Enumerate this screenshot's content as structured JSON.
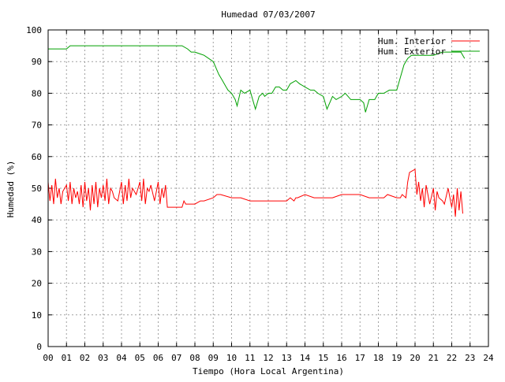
{
  "chart_data": {
    "type": "line",
    "title": "Humedad 07/03/2007",
    "xlabel": "Tiempo (Hora Local Argentina)",
    "ylabel": "Humedad (%)",
    "xlim": [
      0,
      24
    ],
    "ylim": [
      0,
      100
    ],
    "x_ticks": [
      "00",
      "01",
      "02",
      "03",
      "04",
      "05",
      "06",
      "07",
      "08",
      "09",
      "10",
      "11",
      "12",
      "13",
      "14",
      "15",
      "16",
      "17",
      "18",
      "19",
      "20",
      "21",
      "22",
      "23",
      "24"
    ],
    "y_ticks": [
      "0",
      "10",
      "20",
      "30",
      "40",
      "50",
      "60",
      "70",
      "80",
      "90",
      "100"
    ],
    "grid": true,
    "legend_position": "top-right",
    "series": [
      {
        "name": "Hum. Interior",
        "color": "#ff0000",
        "x": [
          0.0,
          0.1,
          0.2,
          0.3,
          0.4,
          0.5,
          0.6,
          0.7,
          0.8,
          0.9,
          1.0,
          1.1,
          1.2,
          1.3,
          1.4,
          1.5,
          1.6,
          1.7,
          1.8,
          1.9,
          2.0,
          2.1,
          2.2,
          2.3,
          2.4,
          2.5,
          2.6,
          2.7,
          2.8,
          2.9,
          3.0,
          3.1,
          3.2,
          3.3,
          3.4,
          3.5,
          3.6,
          3.8,
          4.0,
          4.1,
          4.2,
          4.3,
          4.4,
          4.5,
          4.6,
          4.8,
          5.0,
          5.1,
          5.2,
          5.3,
          5.4,
          5.5,
          5.6,
          5.8,
          6.0,
          6.1,
          6.2,
          6.3,
          6.4,
          6.5,
          6.6,
          7.0,
          7.3,
          7.4,
          7.5,
          7.6,
          8.0,
          8.3,
          8.5,
          9.0,
          9.2,
          9.4,
          10.0,
          10.5,
          11.0,
          11.5,
          12.0,
          12.5,
          13.0,
          13.2,
          13.4,
          13.5,
          13.6,
          14.0,
          14.5,
          15.0,
          15.5,
          16.0,
          16.5,
          17.0,
          17.5,
          18.0,
          18.3,
          18.5,
          19.0,
          19.2,
          19.3,
          19.5,
          19.6,
          19.7,
          20.0,
          20.1,
          20.2,
          20.3,
          20.4,
          20.5,
          20.6,
          20.8,
          21.0,
          21.1,
          21.2,
          21.3,
          21.5,
          21.6,
          21.8,
          22.0,
          22.1,
          22.2,
          22.3,
          22.4,
          22.5,
          22.6
        ],
        "values": [
          52,
          46,
          51,
          45,
          53,
          47,
          50,
          45,
          49,
          50,
          51,
          46,
          52,
          45,
          50,
          47,
          49,
          45,
          51,
          44,
          52,
          46,
          50,
          43,
          51,
          45,
          52,
          44,
          50,
          47,
          51,
          46,
          53,
          45,
          50,
          49,
          47,
          46,
          52,
          45,
          51,
          46,
          53,
          47,
          50,
          48,
          52,
          46,
          53,
          45,
          50,
          49,
          51,
          46,
          52,
          45,
          50,
          47,
          51,
          44,
          44,
          44,
          44,
          46,
          45,
          45,
          45,
          46,
          46,
          47,
          48,
          48,
          47,
          47,
          46,
          46,
          46,
          46,
          46,
          47,
          46,
          47,
          47,
          48,
          47,
          47,
          47,
          48,
          48,
          48,
          47,
          47,
          47,
          48,
          47,
          47,
          48,
          47,
          52,
          55,
          56,
          48,
          52,
          46,
          50,
          44,
          51,
          45,
          50,
          43,
          49,
          47,
          46,
          45,
          50,
          44,
          48,
          41,
          50,
          43,
          49,
          42
        ]
      },
      {
        "name": "Hum. Exterior",
        "color": "#00a000",
        "x": [
          0.0,
          0.5,
          1.0,
          1.2,
          1.5,
          2.0,
          2.5,
          3.0,
          3.5,
          4.0,
          4.5,
          5.0,
          5.5,
          6.0,
          6.5,
          7.0,
          7.3,
          7.6,
          7.8,
          8.0,
          8.5,
          9.0,
          9.3,
          9.5,
          9.7,
          9.8,
          10.0,
          10.2,
          10.3,
          10.5,
          10.7,
          11.0,
          11.2,
          11.3,
          11.5,
          11.7,
          11.8,
          12.0,
          12.2,
          12.4,
          12.6,
          12.8,
          13.0,
          13.2,
          13.5,
          13.7,
          14.0,
          14.3,
          14.5,
          14.7,
          15.0,
          15.2,
          15.5,
          15.7,
          16.0,
          16.2,
          16.5,
          16.7,
          17.0,
          17.2,
          17.3,
          17.5,
          17.8,
          18.0,
          18.3,
          18.6,
          19.0,
          19.2,
          19.4,
          19.6,
          19.8,
          20.0,
          20.5,
          21.0,
          21.5,
          22.0,
          22.5,
          22.7
        ],
        "values": [
          94,
          94,
          94,
          95,
          95,
          95,
          95,
          95,
          95,
          95,
          95,
          95,
          95,
          95,
          95,
          95,
          95,
          94,
          93,
          93,
          92,
          90,
          86,
          84,
          82,
          81,
          80,
          78,
          76,
          81,
          80,
          81,
          77,
          75,
          79,
          80,
          79,
          80,
          80,
          82,
          82,
          81,
          81,
          83,
          84,
          83,
          82,
          81,
          81,
          80,
          79,
          75,
          79,
          78,
          79,
          80,
          78,
          78,
          78,
          77,
          74,
          78,
          78,
          80,
          80,
          81,
          81,
          85,
          89,
          91,
          92,
          92,
          92,
          92,
          93,
          93,
          93,
          91
        ]
      }
    ]
  }
}
